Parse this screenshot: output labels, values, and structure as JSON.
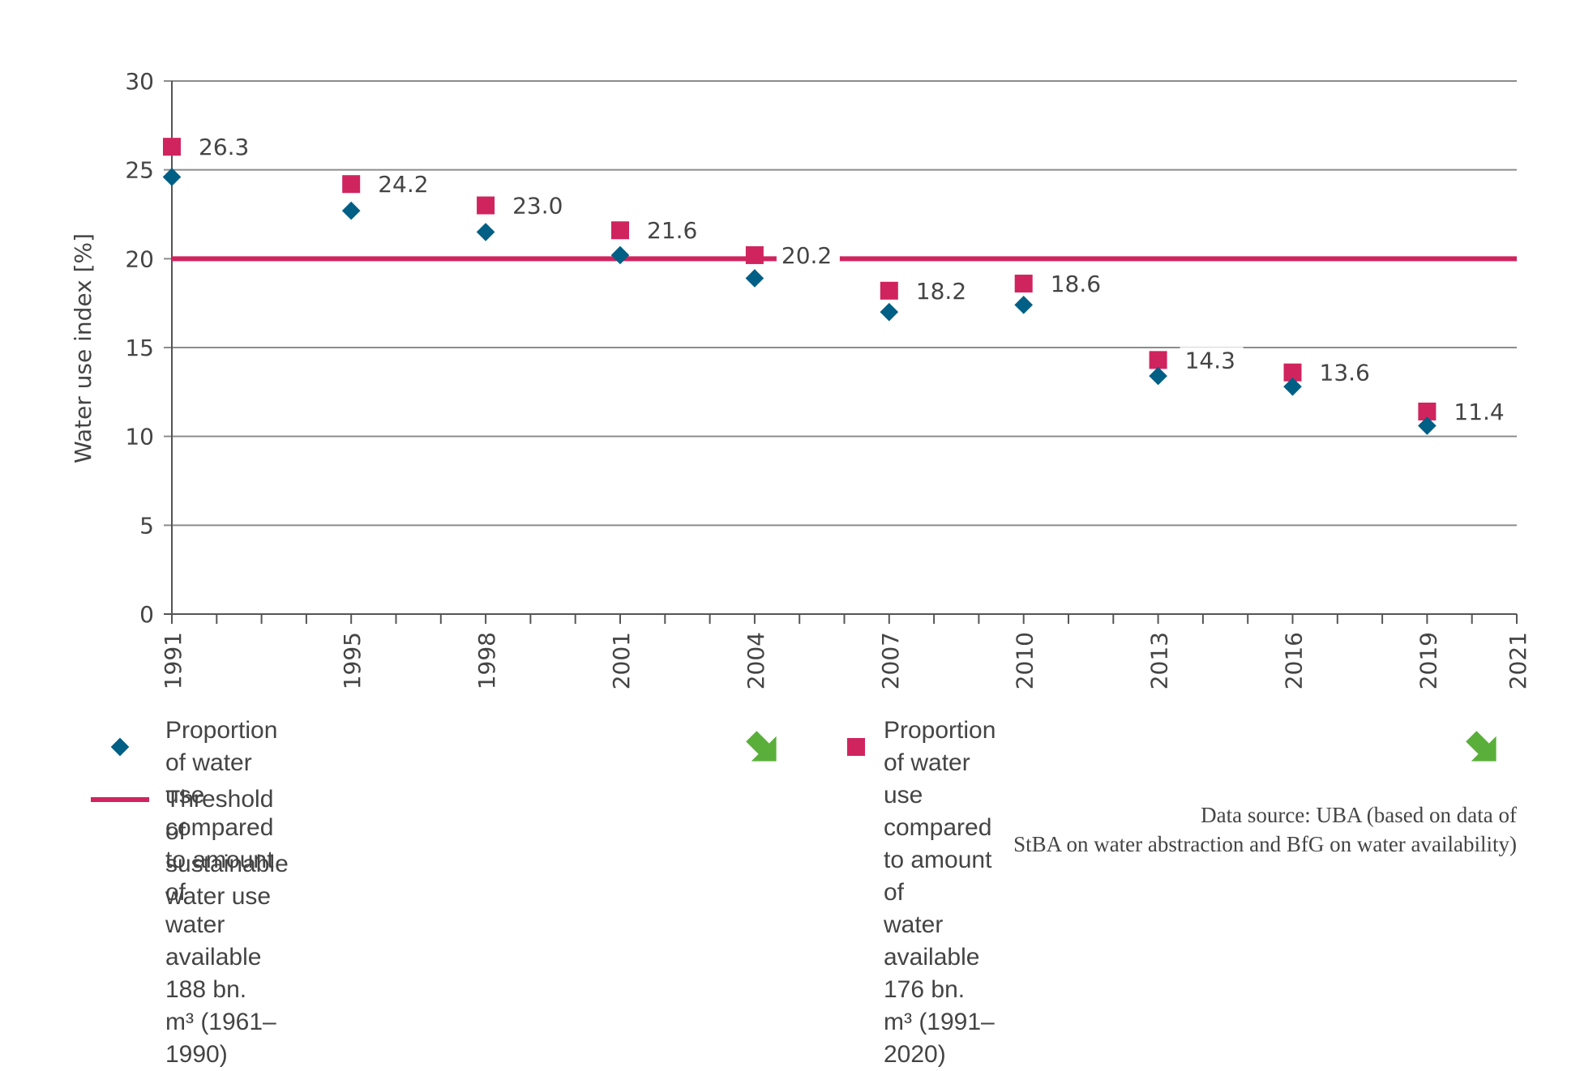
{
  "colors": {
    "series_188": "#005F85",
    "series_176": "#D0245E",
    "threshold": "#D0245E",
    "trend_icon": "#5AAF3A",
    "grid": "#8C8C8C",
    "axis": "#555555",
    "text": "#444444"
  },
  "chart_data": {
    "type": "scatter",
    "title": "",
    "xlabel": "",
    "ylabel": "Water use index [%]",
    "xlim": [
      1991,
      2021
    ],
    "ylim": [
      0,
      30
    ],
    "grid": true,
    "y_ticks": [
      0,
      5,
      10,
      15,
      20,
      25,
      30
    ],
    "x_tick_labels": [
      "1991",
      "1995",
      "1998",
      "2001",
      "2004",
      "2007",
      "2010",
      "2013",
      "2016",
      "2019",
      "2021"
    ],
    "x_ticks": [
      1991,
      1995,
      1998,
      2001,
      2004,
      2007,
      2010,
      2013,
      2016,
      2019,
      2021
    ],
    "x": [
      1991,
      1995,
      1998,
      2001,
      2004,
      2007,
      2010,
      2013,
      2016,
      2019
    ],
    "series": [
      {
        "name": "Proportion of water use compared to amount of water available 188 bn. m³ (1961–1990)",
        "marker": "diamond",
        "values": [
          24.6,
          22.7,
          21.5,
          20.2,
          18.9,
          17.0,
          17.4,
          13.4,
          12.8,
          10.6
        ],
        "labels_shown": false
      },
      {
        "name": "Proportion of water use compared to amount of water available 176 bn. m³ (1991–2020)",
        "marker": "square",
        "values": [
          26.3,
          24.2,
          23.0,
          21.6,
          20.2,
          18.2,
          18.6,
          14.3,
          13.6,
          11.4
        ],
        "data_labels": [
          "26.3",
          "24.2",
          "23.0",
          "21.6",
          "20.2",
          "18.2",
          "18.6",
          "14.3",
          "13.6",
          "11.4"
        ],
        "labels_shown": true
      }
    ],
    "reference_lines": [
      {
        "name": "Threshold of sustainable water use",
        "y": 20
      }
    ],
    "legend_position": "bottom"
  },
  "legend": {
    "items": [
      {
        "text": "Proportion of water use compared to amount of\nwater available 188 bn. m³ (1961–1990)",
        "trend": "decreasing"
      },
      {
        "text": "Proportion of water use compared to amount of\nwater available 176 bn. m³ (1991–2020)",
        "trend": "decreasing"
      },
      {
        "text": "Threshold of sustainable water use"
      }
    ]
  },
  "source": "Data source: UBA (based on data of\nStBA on water abstraction and BfG on water availability)"
}
